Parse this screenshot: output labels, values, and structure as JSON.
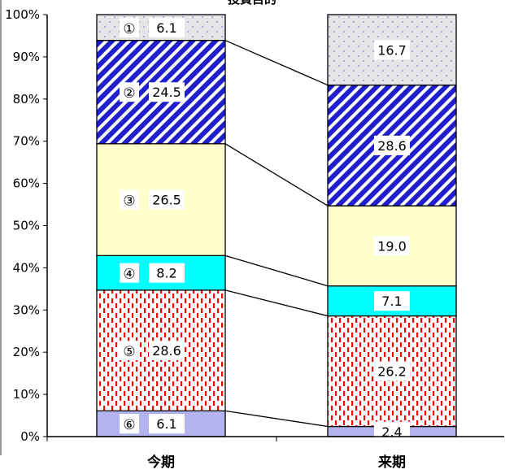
{
  "chart_data": {
    "type": "bar",
    "stacked": true,
    "percent_stacked": true,
    "title": "投資目的",
    "categories": [
      "今期",
      "来期"
    ],
    "y_ticks": [
      "0%",
      "10%",
      "20%",
      "30%",
      "40%",
      "50%",
      "60%",
      "70%",
      "80%",
      "90%",
      "100%"
    ],
    "ylim": [
      0,
      100
    ],
    "grid": false,
    "series": [
      {
        "marker": "⑥",
        "values": [
          6.1,
          2.4
        ],
        "labels": [
          "6.1",
          "2.4"
        ],
        "color": "#b3b3f0",
        "pattern": "solid"
      },
      {
        "marker": "⑤",
        "values": [
          28.6,
          26.2
        ],
        "labels": [
          "28.6",
          "26.2"
        ],
        "color": "#ff0000",
        "pattern": "dashes-on-white"
      },
      {
        "marker": "④",
        "values": [
          8.2,
          7.1
        ],
        "labels": [
          "8.2",
          "7.1"
        ],
        "color": "#00ffff",
        "pattern": "solid"
      },
      {
        "marker": "③",
        "values": [
          26.5,
          19.0
        ],
        "labels": [
          "26.5",
          "19.0"
        ],
        "color": "#ffffcc",
        "pattern": "solid"
      },
      {
        "marker": "②",
        "values": [
          24.5,
          28.6
        ],
        "labels": [
          "24.5",
          "28.6"
        ],
        "color": "#1f1fcc",
        "pattern": "diagonal-stripes"
      },
      {
        "marker": "①",
        "values": [
          6.1,
          16.7
        ],
        "labels": [
          "6.1",
          "16.7"
        ],
        "color": "#9999dd",
        "pattern": "dots-on-gray"
      }
    ]
  }
}
